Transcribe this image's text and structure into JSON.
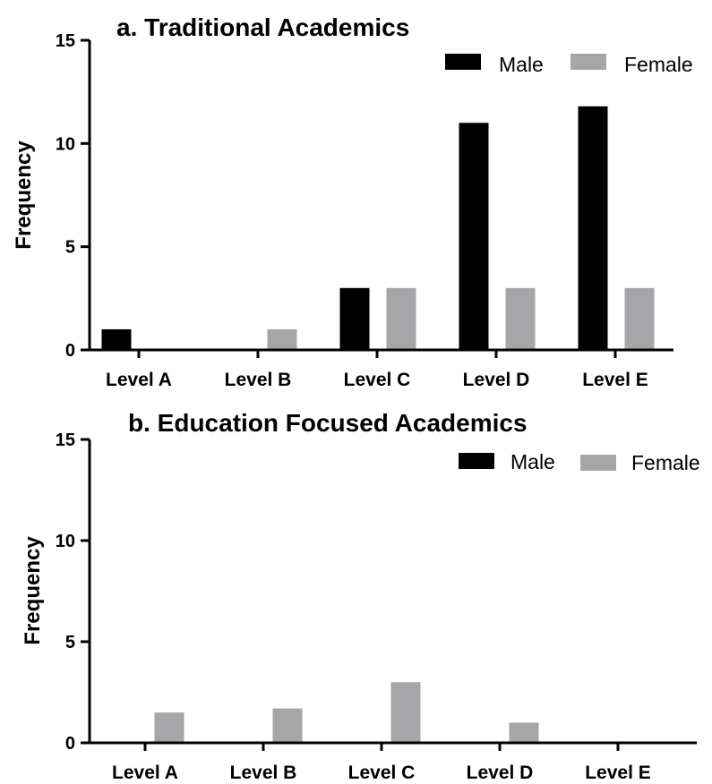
{
  "colors": {
    "male": "#000000",
    "female": "#a6a6a8",
    "axis": "#000000"
  },
  "chart_data": [
    {
      "type": "bar",
      "title": "a. Traditional Academics",
      "xlabel": "",
      "ylabel": "Frequency",
      "ylim": [
        0,
        15
      ],
      "yticks": [
        "0",
        "5",
        "10",
        "15"
      ],
      "categories": [
        "Level A",
        "Level B",
        "Level C",
        "Level D",
        "Level E"
      ],
      "series": [
        {
          "name": "Male",
          "values": [
            1,
            0,
            3,
            11,
            11.8
          ]
        },
        {
          "name": "Female",
          "values": [
            0,
            1,
            3,
            3,
            3
          ]
        }
      ],
      "legend": "top-right"
    },
    {
      "type": "bar",
      "title": "b. Education  Focused Academics",
      "xlabel": "",
      "ylabel": "Frequency",
      "ylim": [
        0,
        15
      ],
      "yticks": [
        "0",
        "5",
        "10",
        "15"
      ],
      "categories": [
        "Level A",
        "Level B",
        "Level C",
        "Level D",
        "Level E"
      ],
      "series": [
        {
          "name": "Male",
          "values": [
            0.05,
            0,
            0,
            0,
            0
          ]
        },
        {
          "name": "Female",
          "values": [
            1.5,
            1.7,
            3,
            1,
            0
          ]
        }
      ],
      "legend": "top-right"
    }
  ]
}
